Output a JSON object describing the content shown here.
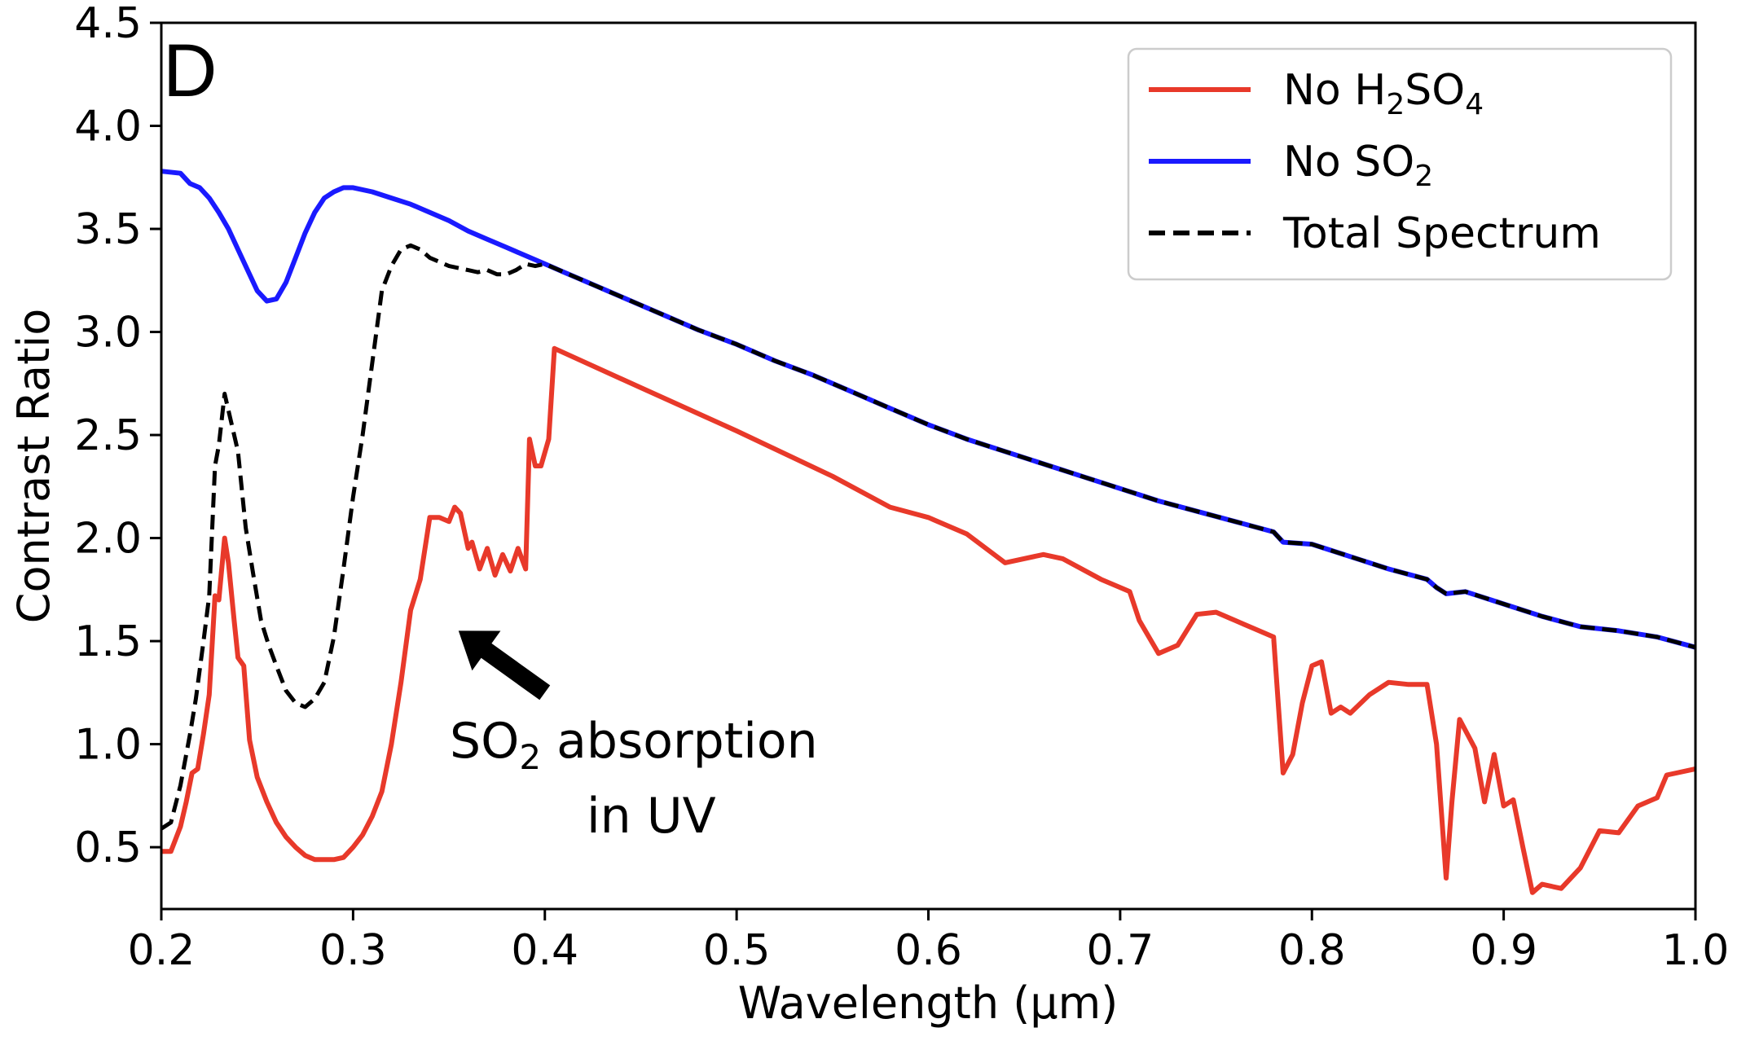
{
  "chart_data": {
    "type": "line",
    "panel_label": "D",
    "xlabel": "Wavelength (μm)",
    "ylabel": "Contrast Ratio",
    "xlim": [
      0.2,
      1.0
    ],
    "ylim": [
      0.2,
      4.5
    ],
    "xticks": [
      "0.2",
      "0.3",
      "0.4",
      "0.5",
      "0.6",
      "0.7",
      "0.8",
      "0.9",
      "1.0"
    ],
    "yticks": [
      "0.5",
      "1.0",
      "1.5",
      "2.0",
      "2.5",
      "3.0",
      "3.5",
      "4.0",
      "4.5"
    ],
    "legend_position": "top-right",
    "annotation": {
      "line1_prefix": "SO",
      "line1_sub": "2",
      "line1_suffix": " absorption",
      "line2": "in UV",
      "arrow_tail": [
        0.4,
        1.25
      ],
      "arrow_head": [
        0.355,
        1.55
      ]
    },
    "series": [
      {
        "key": "no_h2so4",
        "name_main": "No H",
        "name_sub1": "2",
        "name_mid": "SO",
        "name_sub2": "4",
        "color": "#e8392a",
        "style": "solid",
        "x": [
          0.2,
          0.205,
          0.21,
          0.213,
          0.216,
          0.219,
          0.222,
          0.225,
          0.228,
          0.23,
          0.233,
          0.235,
          0.238,
          0.24,
          0.243,
          0.246,
          0.25,
          0.255,
          0.26,
          0.265,
          0.27,
          0.275,
          0.28,
          0.285,
          0.29,
          0.295,
          0.3,
          0.305,
          0.31,
          0.315,
          0.32,
          0.325,
          0.33,
          0.335,
          0.34,
          0.345,
          0.35,
          0.353,
          0.356,
          0.36,
          0.362,
          0.366,
          0.37,
          0.374,
          0.378,
          0.382,
          0.386,
          0.39,
          0.392,
          0.395,
          0.398,
          0.402,
          0.405,
          0.45,
          0.5,
          0.55,
          0.58,
          0.6,
          0.62,
          0.64,
          0.66,
          0.67,
          0.69,
          0.7,
          0.705,
          0.71,
          0.72,
          0.73,
          0.74,
          0.75,
          0.76,
          0.77,
          0.78,
          0.785,
          0.79,
          0.795,
          0.8,
          0.805,
          0.81,
          0.815,
          0.82,
          0.83,
          0.84,
          0.85,
          0.86,
          0.865,
          0.87,
          0.873,
          0.877,
          0.885,
          0.89,
          0.895,
          0.9,
          0.905,
          0.91,
          0.915,
          0.92,
          0.93,
          0.94,
          0.95,
          0.96,
          0.97,
          0.98,
          0.985,
          0.99,
          1.0
        ],
        "y": [
          0.48,
          0.48,
          0.6,
          0.72,
          0.86,
          0.88,
          1.05,
          1.24,
          1.72,
          1.7,
          2.0,
          1.88,
          1.6,
          1.42,
          1.38,
          1.02,
          0.84,
          0.72,
          0.62,
          0.55,
          0.5,
          0.46,
          0.44,
          0.44,
          0.44,
          0.45,
          0.5,
          0.56,
          0.65,
          0.77,
          1.0,
          1.3,
          1.65,
          1.8,
          2.1,
          2.1,
          2.08,
          2.15,
          2.12,
          1.95,
          1.98,
          1.85,
          1.95,
          1.82,
          1.92,
          1.84,
          1.95,
          1.85,
          2.48,
          2.35,
          2.35,
          2.48,
          2.92,
          2.73,
          2.52,
          2.3,
          2.15,
          2.1,
          2.02,
          1.88,
          1.92,
          1.9,
          1.8,
          1.76,
          1.74,
          1.6,
          1.44,
          1.48,
          1.63,
          1.64,
          1.6,
          1.56,
          1.52,
          0.86,
          0.95,
          1.2,
          1.38,
          1.4,
          1.15,
          1.18,
          1.15,
          1.24,
          1.3,
          1.29,
          1.29,
          1.0,
          0.35,
          0.72,
          1.12,
          0.98,
          0.72,
          0.95,
          0.7,
          0.73,
          0.5,
          0.28,
          0.32,
          0.3,
          0.4,
          0.58,
          0.57,
          0.7,
          0.74,
          0.85,
          0.86,
          0.88
        ]
      },
      {
        "key": "no_so2",
        "name_main": "No SO",
        "name_sub1": "2",
        "name_mid": "",
        "name_sub2": "",
        "color": "#1a1aff",
        "style": "solid",
        "x": [
          0.2,
          0.21,
          0.215,
          0.22,
          0.225,
          0.23,
          0.235,
          0.24,
          0.245,
          0.25,
          0.255,
          0.26,
          0.265,
          0.27,
          0.275,
          0.28,
          0.285,
          0.29,
          0.295,
          0.3,
          0.31,
          0.32,
          0.33,
          0.34,
          0.35,
          0.36,
          0.37,
          0.38,
          0.39,
          0.4,
          0.41,
          0.42,
          0.43,
          0.44,
          0.45,
          0.46,
          0.48,
          0.5,
          0.52,
          0.54,
          0.56,
          0.58,
          0.6,
          0.62,
          0.64,
          0.66,
          0.68,
          0.7,
          0.72,
          0.74,
          0.76,
          0.78,
          0.785,
          0.8,
          0.82,
          0.84,
          0.86,
          0.865,
          0.87,
          0.88,
          0.9,
          0.92,
          0.94,
          0.96,
          0.98,
          1.0
        ],
        "y": [
          3.78,
          3.77,
          3.72,
          3.7,
          3.65,
          3.58,
          3.5,
          3.4,
          3.3,
          3.2,
          3.15,
          3.16,
          3.24,
          3.36,
          3.48,
          3.58,
          3.65,
          3.68,
          3.7,
          3.7,
          3.68,
          3.65,
          3.62,
          3.58,
          3.54,
          3.49,
          3.45,
          3.41,
          3.37,
          3.33,
          3.29,
          3.25,
          3.21,
          3.17,
          3.13,
          3.09,
          3.01,
          2.94,
          2.86,
          2.79,
          2.71,
          2.63,
          2.55,
          2.48,
          2.42,
          2.36,
          2.3,
          2.24,
          2.18,
          2.13,
          2.08,
          2.03,
          1.98,
          1.97,
          1.91,
          1.85,
          1.8,
          1.76,
          1.73,
          1.74,
          1.68,
          1.62,
          1.57,
          1.55,
          1.52,
          1.47
        ]
      },
      {
        "key": "total",
        "name_main": "Total Spectrum",
        "name_sub1": "",
        "name_mid": "",
        "name_sub2": "",
        "color": "#000000",
        "style": "dashed",
        "x": [
          0.2,
          0.205,
          0.21,
          0.215,
          0.218,
          0.222,
          0.225,
          0.228,
          0.23,
          0.233,
          0.236,
          0.24,
          0.244,
          0.248,
          0.252,
          0.256,
          0.26,
          0.265,
          0.27,
          0.275,
          0.28,
          0.285,
          0.29,
          0.295,
          0.3,
          0.305,
          0.31,
          0.315,
          0.32,
          0.325,
          0.33,
          0.335,
          0.34,
          0.345,
          0.35,
          0.355,
          0.36,
          0.365,
          0.37,
          0.375,
          0.38,
          0.385,
          0.39,
          0.395,
          0.4,
          0.41,
          0.42,
          0.43,
          0.44,
          0.45,
          0.46,
          0.48,
          0.5,
          0.52,
          0.54,
          0.56,
          0.58,
          0.6,
          0.62,
          0.64,
          0.66,
          0.68,
          0.7,
          0.72,
          0.74,
          0.76,
          0.78,
          0.785,
          0.8,
          0.82,
          0.84,
          0.86,
          0.865,
          0.87,
          0.88,
          0.9,
          0.92,
          0.94,
          0.96,
          0.98,
          1.0
        ],
        "y": [
          0.59,
          0.62,
          0.8,
          1.05,
          1.22,
          1.5,
          1.72,
          2.35,
          2.45,
          2.7,
          2.58,
          2.42,
          2.05,
          1.82,
          1.6,
          1.48,
          1.38,
          1.26,
          1.2,
          1.18,
          1.22,
          1.3,
          1.52,
          1.85,
          2.2,
          2.5,
          2.85,
          3.2,
          3.32,
          3.4,
          3.42,
          3.4,
          3.36,
          3.34,
          3.32,
          3.31,
          3.3,
          3.29,
          3.3,
          3.28,
          3.28,
          3.3,
          3.33,
          3.32,
          3.33,
          3.29,
          3.25,
          3.21,
          3.17,
          3.13,
          3.09,
          3.01,
          2.94,
          2.86,
          2.79,
          2.71,
          2.63,
          2.55,
          2.48,
          2.42,
          2.36,
          2.3,
          2.24,
          2.18,
          2.13,
          2.08,
          2.03,
          1.98,
          1.97,
          1.91,
          1.85,
          1.8,
          1.76,
          1.73,
          1.74,
          1.68,
          1.62,
          1.57,
          1.55,
          1.52,
          1.47
        ]
      }
    ]
  }
}
